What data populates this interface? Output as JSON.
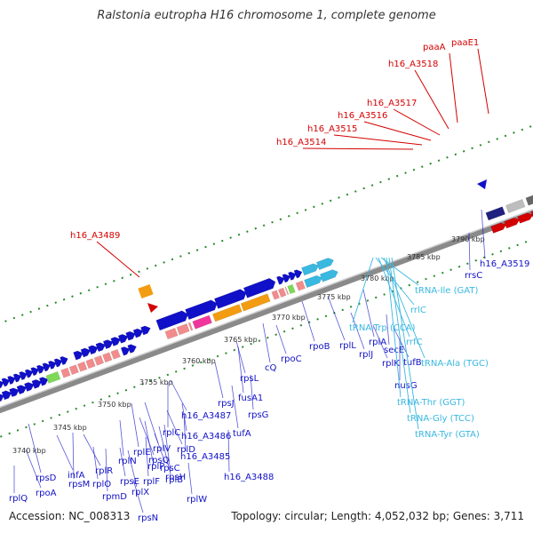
{
  "title": "Ralstonia eutropha H16 chromosome 1, complete genome",
  "footer": {
    "accession": "Accession: NC_008313",
    "topology": "Topology: circular; Length: 4,052,032 bp; Genes: 3,711"
  },
  "scale": {
    "ticks": [
      "3740 kbp",
      "3745 kbp",
      "3750 kbp",
      "3755 kbp",
      "3760 kbp",
      "3765 kbp",
      "3770 kbp",
      "3775 kbp",
      "3780 kbp",
      "3785 kbp",
      "3790 kbp"
    ]
  },
  "labels": {
    "red": [
      "paaA",
      "paaE1",
      "h16_A3518",
      "h16_A3517",
      "h16_A3516",
      "h16_A3515",
      "h16_A3514",
      "h16_A3489"
    ],
    "blue": [
      "rplQ",
      "rpoA",
      "rpsD",
      "rpsM",
      "infA",
      "rplO",
      "rpmD",
      "rplR",
      "rpsE",
      "rplF",
      "rplX",
      "rpsH",
      "rplN",
      "rpsN",
      "rplE",
      "rplV",
      "rpsC",
      "rplP",
      "rpsQ",
      "rplB",
      "rplC",
      "rplD",
      "rplW",
      "h16_A3488",
      "h16_A3487",
      "h16_A3486",
      "h16_A3485",
      "rpsJ",
      "fusA1",
      "rpsG",
      "rpsL",
      "tufA",
      "rpoB",
      "rpoC",
      "cQ",
      "rplJ",
      "rplA",
      "rplL",
      "rplK",
      "secE",
      "nusG",
      "tufB",
      "h16_A3519",
      "rrsC"
    ],
    "cyan": [
      "tRNA-Trp (CCA)",
      "rrlC",
      "rrfC",
      "tRNA-Ile (GAT)",
      "tRNA-Ala (TGC)",
      "tRNA-Thr (GGT)",
      "tRNA-Gly (TCC)",
      "tRNA-Tyr (GTA)"
    ]
  },
  "colors": {
    "red": "#d40000",
    "blue": "#1010c8",
    "cyan": "#39b8e0",
    "backbone": "#8a8a8a",
    "tick": "#2a8a2a",
    "orange": "#f39c12",
    "salmon": "#f28c8c",
    "magenta": "#f0359c",
    "navy": "#202080",
    "gray": "#666666",
    "lime": "#7ed957"
  }
}
